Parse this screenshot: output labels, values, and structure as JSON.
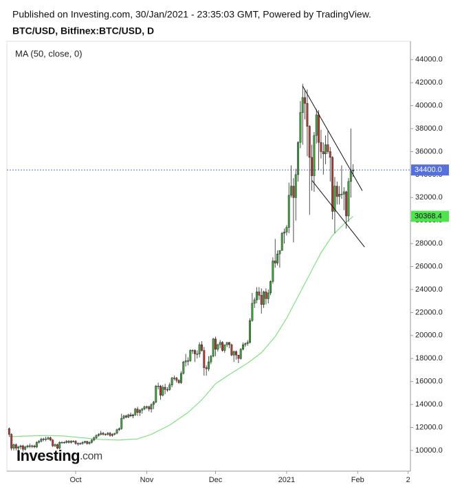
{
  "chart_data": {
    "type": "candlestick",
    "title": "Published on Investing.com, 30/Jan/2021 - 23:35:03 GMT, Powered by TradingView.",
    "subtitle": "BTC/USD, Bitfinex:BTC/USD, D",
    "logo": {
      "brand": "Investing",
      "suffix": ".com"
    },
    "up_color": "#3cab3c",
    "down_color": "#c0392b",
    "open": [
      11900,
      11400,
      10200,
      10500,
      10200,
      10300,
      10400,
      10100,
      10300,
      10400,
      10400,
      10400,
      10300,
      10700,
      10800,
      11000,
      11000,
      11000,
      11100,
      10900,
      10400,
      10500,
      10200,
      10700,
      10700,
      10700,
      10800,
      10700,
      10800,
      10800,
      10600,
      10600,
      10600,
      10700,
      10800,
      10600,
      10700,
      10900,
      11100,
      11300,
      11400,
      11500,
      11400,
      11400,
      11500,
      11300,
      11400,
      11500,
      11800,
      11900,
      12800,
      13000,
      12900,
      13100,
      13000,
      13100,
      13600,
      13300,
      13500,
      13600,
      13800,
      13800,
      13600,
      14000,
      14200,
      15600,
      15600,
      14800,
      15500,
      15300,
      15300,
      15700,
      16300,
      16300,
      16100,
      15900,
      16700,
      17700,
      17800,
      17800,
      18700,
      18700,
      18400,
      18400,
      19200,
      18700,
      17200,
      17100,
      17700,
      18200,
      19700,
      18800,
      19200,
      19400,
      18700,
      19200,
      19400,
      19200,
      18300,
      18600,
      18300,
      18000,
      18800,
      19200,
      19300,
      19400,
      21300,
      22800,
      23100,
      23800,
      23500,
      22700,
      23800,
      23200,
      23700,
      24700,
      26500,
      26300,
      27100,
      27400,
      28900,
      29000,
      29400,
      32200,
      33000,
      32000,
      34000,
      36800,
      39400,
      40700,
      40200,
      38200,
      35500,
      33900,
      37400,
      39200,
      36800,
      36000,
      35800,
      36600,
      36000,
      35500,
      30800,
      33000,
      32100,
      32300,
      32300,
      32500,
      30400,
      33400,
      34300
    ],
    "high": [
      12000,
      11500,
      10600,
      10600,
      10400,
      10500,
      10500,
      10400,
      10500,
      10600,
      10500,
      10500,
      10800,
      10900,
      11100,
      11100,
      11200,
      11200,
      11200,
      11000,
      10600,
      10600,
      10800,
      10800,
      10800,
      10900,
      10900,
      10900,
      10900,
      10900,
      10700,
      10700,
      10800,
      10800,
      10800,
      10800,
      11000,
      11200,
      11400,
      11500,
      11700,
      11600,
      11500,
      11600,
      11600,
      11500,
      11500,
      11900,
      12000,
      13200,
      13100,
      13100,
      13200,
      13300,
      13200,
      13700,
      13800,
      13600,
      13700,
      13900,
      13900,
      13900,
      14100,
      14300,
      15700,
      15900,
      15700,
      15700,
      15800,
      15500,
      15900,
      16400,
      16500,
      16400,
      16200,
      16900,
      17800,
      18400,
      18100,
      18800,
      18800,
      18800,
      18700,
      19400,
      19500,
      19000,
      17400,
      18200,
      18300,
      19800,
      19900,
      19300,
      19600,
      19500,
      19200,
      19400,
      19400,
      19300,
      18700,
      18700,
      18300,
      18900,
      19400,
      19400,
      19600,
      21500,
      23700,
      23300,
      24200,
      24200,
      24100,
      23900,
      24100,
      24000,
      24800,
      26800,
      28400,
      27400,
      27400,
      29000,
      29300,
      29600,
      33300,
      34800,
      33700,
      34500,
      36900,
      40400,
      41900,
      41400,
      41400,
      38300,
      36600,
      37700,
      39700,
      39600,
      37900,
      36800,
      37400,
      37800,
      36400,
      35600,
      33800,
      33400,
      33000,
      34800,
      32900,
      32600,
      33700,
      38000,
      34900
    ],
    "low": [
      11200,
      10000,
      10000,
      10000,
      10000,
      10100,
      9900,
      10000,
      10200,
      10200,
      10200,
      10200,
      10200,
      10600,
      10700,
      10800,
      10800,
      10900,
      10800,
      10300,
      10300,
      10100,
      10100,
      10600,
      10600,
      10600,
      10600,
      10600,
      10700,
      10500,
      10400,
      10500,
      10500,
      10600,
      10500,
      10500,
      10600,
      10800,
      11000,
      11200,
      11300,
      11300,
      11300,
      11300,
      11200,
      11200,
      11300,
      11400,
      11700,
      11800,
      12700,
      12800,
      12800,
      12900,
      12800,
      13000,
      13000,
      13000,
      13200,
      13500,
      13600,
      13400,
      13300,
      13600,
      14100,
      15300,
      14400,
      14700,
      14900,
      15100,
      15200,
      15500,
      16100,
      15900,
      15800,
      15800,
      16600,
      17300,
      17400,
      17700,
      18400,
      17700,
      18000,
      18100,
      18600,
      16500,
      16500,
      16900,
      17500,
      18100,
      18200,
      18600,
      18900,
      18600,
      18500,
      19000,
      18900,
      18200,
      17700,
      17900,
      17600,
      17900,
      18700,
      19000,
      19100,
      19300,
      21200,
      22400,
      22800,
      23100,
      21900,
      22400,
      22700,
      22800,
      23500,
      24500,
      25900,
      26100,
      25900,
      27400,
      28000,
      28700,
      28900,
      32000,
      28100,
      30000,
      33400,
      36300,
      36600,
      38800,
      35600,
      30500,
      32600,
      32500,
      36700,
      34400,
      35400,
      34000,
      34900,
      35800,
      33400,
      30100,
      28900,
      31400,
      31400,
      31900,
      30900,
      29300,
      29900,
      32000,
      33800
    ],
    "close": [
      11400,
      10200,
      10500,
      10200,
      10300,
      10400,
      10100,
      10300,
      10400,
      10400,
      10400,
      10300,
      10700,
      10800,
      11000,
      11000,
      11000,
      11100,
      10900,
      10400,
      10500,
      10200,
      10700,
      10700,
      10700,
      10800,
      10700,
      10800,
      10800,
      10600,
      10600,
      10600,
      10700,
      10800,
      10600,
      10700,
      10900,
      11100,
      11300,
      11400,
      11500,
      11400,
      11400,
      11500,
      11300,
      11400,
      11500,
      11800,
      11900,
      12800,
      13000,
      12900,
      13100,
      13000,
      13100,
      13600,
      13300,
      13500,
      13600,
      13800,
      13800,
      13600,
      14000,
      14200,
      15600,
      15600,
      14800,
      15500,
      15300,
      15300,
      15700,
      16300,
      16300,
      16100,
      15900,
      16700,
      17700,
      17800,
      17800,
      18700,
      18700,
      18400,
      18400,
      19200,
      18700,
      17200,
      17100,
      17700,
      18200,
      19700,
      18800,
      19200,
      19400,
      18700,
      19200,
      19400,
      19200,
      18300,
      18600,
      18300,
      18000,
      18800,
      19200,
      19300,
      19400,
      21300,
      22800,
      23100,
      23800,
      23500,
      22700,
      23800,
      23200,
      23700,
      24700,
      26500,
      26300,
      27100,
      27400,
      28900,
      29000,
      29400,
      32200,
      33000,
      32000,
      34000,
      36800,
      39400,
      40700,
      40200,
      38200,
      35500,
      33900,
      37400,
      39200,
      36800,
      36000,
      35800,
      36600,
      36000,
      35500,
      30800,
      33000,
      32100,
      32300,
      32300,
      32500,
      30400,
      33400,
      34300,
      34400
    ],
    "moving_average": {
      "name": "MA (50, close, 0)",
      "color": "#7ee37e",
      "x": [
        0,
        8,
        16,
        24,
        32,
        40,
        48,
        56,
        62,
        70,
        78,
        84,
        90,
        96,
        104,
        110,
        116,
        121,
        126,
        131,
        136,
        141,
        146,
        150
      ],
      "values": [
        11200,
        11250,
        11300,
        11250,
        11100,
        10950,
        10900,
        11000,
        11400,
        12200,
        13300,
        14400,
        15800,
        16600,
        17600,
        18500,
        19900,
        21500,
        23400,
        25300,
        27200,
        28700,
        29700,
        30368.4
      ]
    },
    "last_price": {
      "value": 34400,
      "label": "34400.0",
      "color": "#5470e0"
    },
    "trendlines": [
      {
        "x": [
          128,
          154
        ],
        "values": [
          41700,
          32600
        ]
      },
      {
        "x": [
          132,
          155
        ],
        "values": [
          33500,
          27700
        ]
      }
    ],
    "xlim": [
      -1,
      175
    ],
    "xticks": [
      {
        "value": 29,
        "label": "Oct"
      },
      {
        "value": 60,
        "label": "Nov"
      },
      {
        "value": 90,
        "label": "Dec"
      },
      {
        "value": 121,
        "label": "2021"
      },
      {
        "value": 152,
        "label": "Feb"
      },
      {
        "value": 174,
        "label": "2"
      }
    ],
    "ylim": [
      8200,
      45600
    ],
    "yticks": [
      {
        "value": 10000,
        "label": "10000.0"
      },
      {
        "value": 12000,
        "label": "12000.0"
      },
      {
        "value": 14000,
        "label": "14000.0"
      },
      {
        "value": 16000,
        "label": "16000.0"
      },
      {
        "value": 18000,
        "label": "18000.0"
      },
      {
        "value": 20000,
        "label": "20000.0"
      },
      {
        "value": 22000,
        "label": "22000.0"
      },
      {
        "value": 24000,
        "label": "24000.0"
      },
      {
        "value": 26000,
        "label": "26000.0"
      },
      {
        "value": 28000,
        "label": "28000.0"
      },
      {
        "value": 30000,
        "label": "30000.0"
      },
      {
        "value": 32000,
        "label": "32000.0"
      },
      {
        "value": 34000,
        "label": "34000.0"
      },
      {
        "value": 36000,
        "label": "36000.0"
      },
      {
        "value": 38000,
        "label": "38000.0"
      },
      {
        "value": 40000,
        "label": "40000.0"
      },
      {
        "value": 42000,
        "label": "42000.0"
      },
      {
        "value": 44000,
        "label": "44000.0"
      }
    ]
  }
}
